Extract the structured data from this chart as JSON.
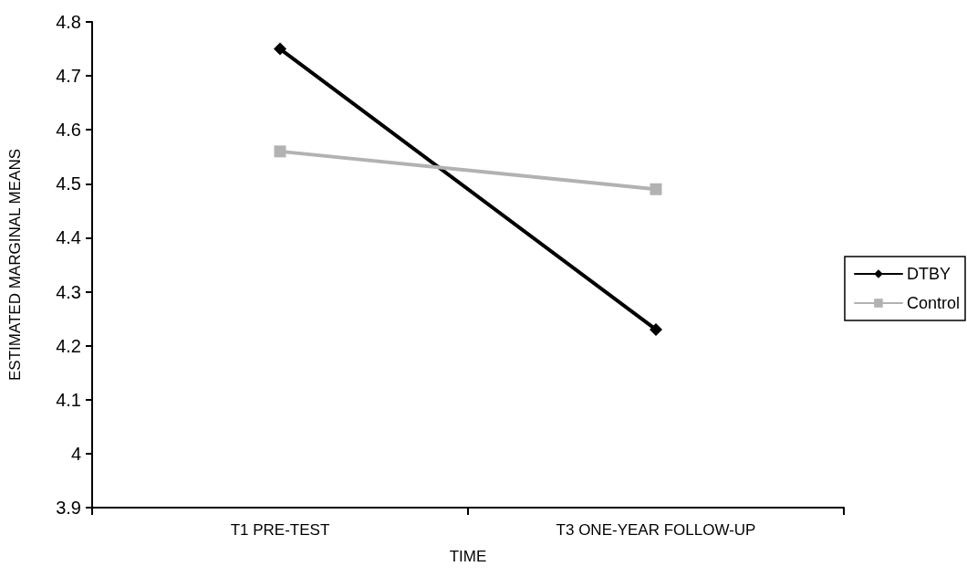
{
  "chart_data": {
    "type": "line",
    "xlabel": "TIME",
    "ylabel": "ESTIMATED MARGINAL MEANS",
    "categories": [
      "T1 PRE-TEST",
      "T3 ONE-YEAR FOLLOW-UP"
    ],
    "series": [
      {
        "name": "DTBY",
        "color": "#000000",
        "values": [
          4.75,
          4.23
        ],
        "marker": "diamond"
      },
      {
        "name": "Control",
        "color": "#b2b2b2",
        "values": [
          4.56,
          4.49
        ],
        "marker": "square"
      }
    ],
    "ylim": [
      3.9,
      4.8
    ],
    "yticks": [
      3.9,
      4,
      4.1,
      4.2,
      4.3,
      4.4,
      4.5,
      4.6,
      4.7,
      4.8
    ],
    "grid": false,
    "legend": "right",
    "line_style": "solid"
  }
}
